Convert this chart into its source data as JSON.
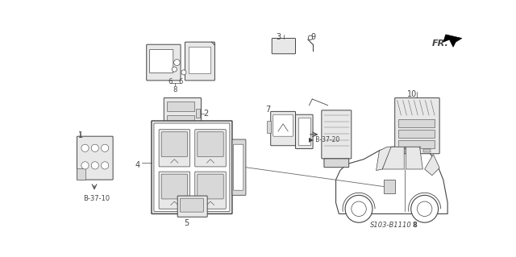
{
  "bg_color": "#ffffff",
  "fig_width": 6.4,
  "fig_height": 3.19,
  "dpi": 100,
  "diagram_label": "S103-B1110",
  "b3720_label": "B-37-20",
  "b3710_label": "B-37-10",
  "ec": "#444444",
  "lc": "#666666"
}
